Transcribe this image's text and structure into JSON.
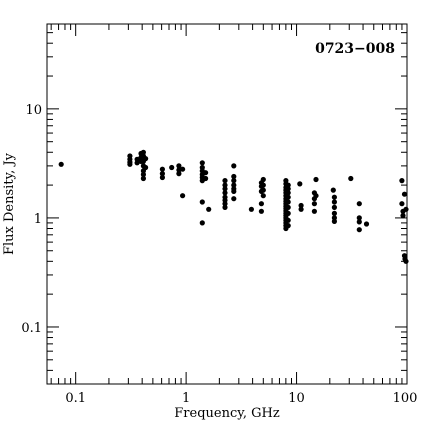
{
  "chart_data": {
    "type": "scatter",
    "title": "0723−008",
    "xlabel": "Frequency, GHz",
    "ylabel": "Flux Density, Jy",
    "xscale": "log",
    "yscale": "log",
    "xlim": [
      0.055,
      100
    ],
    "ylim": [
      0.03,
      60
    ],
    "xticks": [
      0.1,
      1,
      10,
      100
    ],
    "xtick_labels": [
      "0.1",
      "1",
      "10",
      "100"
    ],
    "yticks": [
      0.1,
      1,
      10
    ],
    "ytick_labels": [
      "0.1",
      "1",
      "10"
    ],
    "grid": false,
    "legend": "none",
    "marker_color": "#000000",
    "points": [
      {
        "x": 0.074,
        "y": 3.1
      },
      {
        "x": 0.31,
        "y": 3.7
      },
      {
        "x": 0.31,
        "y": 3.45
      },
      {
        "x": 0.31,
        "y": 3.25
      },
      {
        "x": 0.31,
        "y": 3.1
      },
      {
        "x": 0.36,
        "y": 3.45
      },
      {
        "x": 0.36,
        "y": 3.2
      },
      {
        "x": 0.39,
        "y": 3.9
      },
      {
        "x": 0.39,
        "y": 3.6
      },
      {
        "x": 0.39,
        "y": 3.3
      },
      {
        "x": 0.41,
        "y": 4.0
      },
      {
        "x": 0.41,
        "y": 3.7
      },
      {
        "x": 0.41,
        "y": 3.3
      },
      {
        "x": 0.41,
        "y": 3.0
      },
      {
        "x": 0.41,
        "y": 2.7
      },
      {
        "x": 0.41,
        "y": 2.5
      },
      {
        "x": 0.41,
        "y": 2.3
      },
      {
        "x": 0.43,
        "y": 3.5
      },
      {
        "x": 0.43,
        "y": 2.9
      },
      {
        "x": 0.61,
        "y": 2.8
      },
      {
        "x": 0.61,
        "y": 2.55
      },
      {
        "x": 0.61,
        "y": 2.35
      },
      {
        "x": 0.74,
        "y": 2.9
      },
      {
        "x": 0.86,
        "y": 3.0
      },
      {
        "x": 0.86,
        "y": 2.75
      },
      {
        "x": 0.86,
        "y": 2.55
      },
      {
        "x": 0.93,
        "y": 2.8
      },
      {
        "x": 0.93,
        "y": 1.6
      },
      {
        "x": 1.4,
        "y": 3.2
      },
      {
        "x": 1.4,
        "y": 2.9
      },
      {
        "x": 1.4,
        "y": 2.7
      },
      {
        "x": 1.4,
        "y": 2.5
      },
      {
        "x": 1.4,
        "y": 2.35
      },
      {
        "x": 1.4,
        "y": 2.2
      },
      {
        "x": 1.4,
        "y": 1.4
      },
      {
        "x": 1.4,
        "y": 0.9
      },
      {
        "x": 1.5,
        "y": 2.6
      },
      {
        "x": 1.5,
        "y": 2.3
      },
      {
        "x": 1.6,
        "y": 1.2
      },
      {
        "x": 2.25,
        "y": 2.2
      },
      {
        "x": 2.25,
        "y": 2.0
      },
      {
        "x": 2.25,
        "y": 1.85
      },
      {
        "x": 2.25,
        "y": 1.7
      },
      {
        "x": 2.25,
        "y": 1.55
      },
      {
        "x": 2.25,
        "y": 1.45
      },
      {
        "x": 2.25,
        "y": 1.35
      },
      {
        "x": 2.25,
        "y": 1.25
      },
      {
        "x": 2.7,
        "y": 3.0
      },
      {
        "x": 2.7,
        "y": 2.4
      },
      {
        "x": 2.7,
        "y": 2.2
      },
      {
        "x": 2.7,
        "y": 2.0
      },
      {
        "x": 2.7,
        "y": 1.85
      },
      {
        "x": 2.7,
        "y": 1.75
      },
      {
        "x": 2.7,
        "y": 1.5
      },
      {
        "x": 3.9,
        "y": 1.2
      },
      {
        "x": 4.8,
        "y": 2.1
      },
      {
        "x": 4.8,
        "y": 1.95
      },
      {
        "x": 4.8,
        "y": 1.75
      },
      {
        "x": 4.8,
        "y": 1.35
      },
      {
        "x": 4.8,
        "y": 1.15
      },
      {
        "x": 5.0,
        "y": 2.25
      },
      {
        "x": 5.0,
        "y": 2.0
      },
      {
        "x": 5.0,
        "y": 1.8
      },
      {
        "x": 5.0,
        "y": 1.6
      },
      {
        "x": 8.0,
        "y": 2.2
      },
      {
        "x": 8.0,
        "y": 2.05
      },
      {
        "x": 8.0,
        "y": 1.9
      },
      {
        "x": 8.0,
        "y": 1.8
      },
      {
        "x": 8.0,
        "y": 1.7
      },
      {
        "x": 8.0,
        "y": 1.6
      },
      {
        "x": 8.0,
        "y": 1.5
      },
      {
        "x": 8.0,
        "y": 1.42
      },
      {
        "x": 8.0,
        "y": 1.35
      },
      {
        "x": 8.0,
        "y": 1.28
      },
      {
        "x": 8.0,
        "y": 1.22
      },
      {
        "x": 8.0,
        "y": 1.16
      },
      {
        "x": 8.0,
        "y": 1.1
      },
      {
        "x": 8.0,
        "y": 1.05
      },
      {
        "x": 8.0,
        "y": 1.0
      },
      {
        "x": 8.0,
        "y": 0.95
      },
      {
        "x": 8.0,
        "y": 0.9
      },
      {
        "x": 8.0,
        "y": 0.85
      },
      {
        "x": 8.0,
        "y": 0.8
      },
      {
        "x": 8.4,
        "y": 2.0
      },
      {
        "x": 8.4,
        "y": 1.85
      },
      {
        "x": 8.4,
        "y": 1.7
      },
      {
        "x": 8.4,
        "y": 1.55
      },
      {
        "x": 8.4,
        "y": 1.4
      },
      {
        "x": 8.4,
        "y": 1.25
      },
      {
        "x": 8.4,
        "y": 1.1
      },
      {
        "x": 8.4,
        "y": 0.95
      },
      {
        "x": 8.4,
        "y": 0.85
      },
      {
        "x": 10.7,
        "y": 2.05
      },
      {
        "x": 11.0,
        "y": 1.3
      },
      {
        "x": 11.0,
        "y": 1.2
      },
      {
        "x": 14.5,
        "y": 1.7
      },
      {
        "x": 14.5,
        "y": 1.5
      },
      {
        "x": 14.5,
        "y": 1.35
      },
      {
        "x": 14.5,
        "y": 1.15
      },
      {
        "x": 15.0,
        "y": 2.25
      },
      {
        "x": 15.0,
        "y": 1.6
      },
      {
        "x": 21.5,
        "y": 1.8
      },
      {
        "x": 22.0,
        "y": 1.55
      },
      {
        "x": 22.0,
        "y": 1.4
      },
      {
        "x": 22.0,
        "y": 1.25
      },
      {
        "x": 22.0,
        "y": 1.1
      },
      {
        "x": 22.0,
        "y": 1.0
      },
      {
        "x": 22.0,
        "y": 0.93
      },
      {
        "x": 31.0,
        "y": 2.3
      },
      {
        "x": 37.0,
        "y": 1.35
      },
      {
        "x": 37.0,
        "y": 1.0
      },
      {
        "x": 37.0,
        "y": 0.92
      },
      {
        "x": 37.0,
        "y": 0.78
      },
      {
        "x": 43.0,
        "y": 0.88
      },
      {
        "x": 90.0,
        "y": 2.2
      },
      {
        "x": 90.0,
        "y": 1.35
      },
      {
        "x": 92.0,
        "y": 1.15
      },
      {
        "x": 92.0,
        "y": 1.05
      },
      {
        "x": 95.0,
        "y": 1.65
      },
      {
        "x": 95.0,
        "y": 0.45
      },
      {
        "x": 96.0,
        "y": 0.42
      },
      {
        "x": 98.0,
        "y": 0.4
      },
      {
        "x": 98.0,
        "y": 1.2
      }
    ]
  }
}
